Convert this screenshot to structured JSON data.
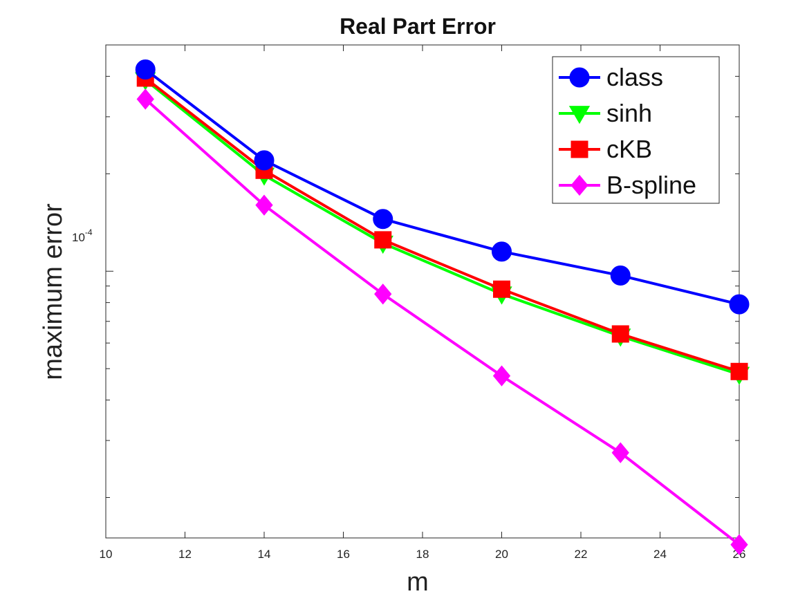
{
  "chart_data": {
    "type": "line",
    "title": "Real Part Error",
    "xlabel": "m",
    "ylabel": "maximum error",
    "xlim": [
      10,
      26
    ],
    "ylim": [
      1.5e-05,
      0.0005
    ],
    "yscale": "log",
    "grid": false,
    "legend_position": "top-right",
    "xticks": [
      10,
      12,
      14,
      16,
      18,
      20,
      22,
      24,
      26
    ],
    "ytick_label_base": "10",
    "ytick_label_exp": "-4",
    "x": [
      11,
      14,
      17,
      20,
      23,
      26
    ],
    "series": [
      {
        "name": "class",
        "color": "#0000ff",
        "marker": "circle",
        "values": [
          0.00042,
          0.00022,
          0.000145,
          0.000115,
          9.7e-05,
          7.9e-05
        ]
      },
      {
        "name": "sinh",
        "color": "#00ff00",
        "marker": "triangle-down",
        "values": [
          0.00039,
          0.000198,
          0.000122,
          8.5e-05,
          6.3e-05,
          4.8e-05
        ]
      },
      {
        "name": "cKB",
        "color": "#ff0000",
        "marker": "square",
        "values": [
          0.000395,
          0.000205,
          0.000125,
          8.8e-05,
          6.4e-05,
          4.9e-05
        ]
      },
      {
        "name": "B-spline",
        "color": "#ff00ff",
        "marker": "diamond",
        "values": [
          0.00034,
          0.00016,
          8.5e-05,
          4.75e-05,
          2.75e-05,
          1.43e-05
        ]
      }
    ]
  }
}
